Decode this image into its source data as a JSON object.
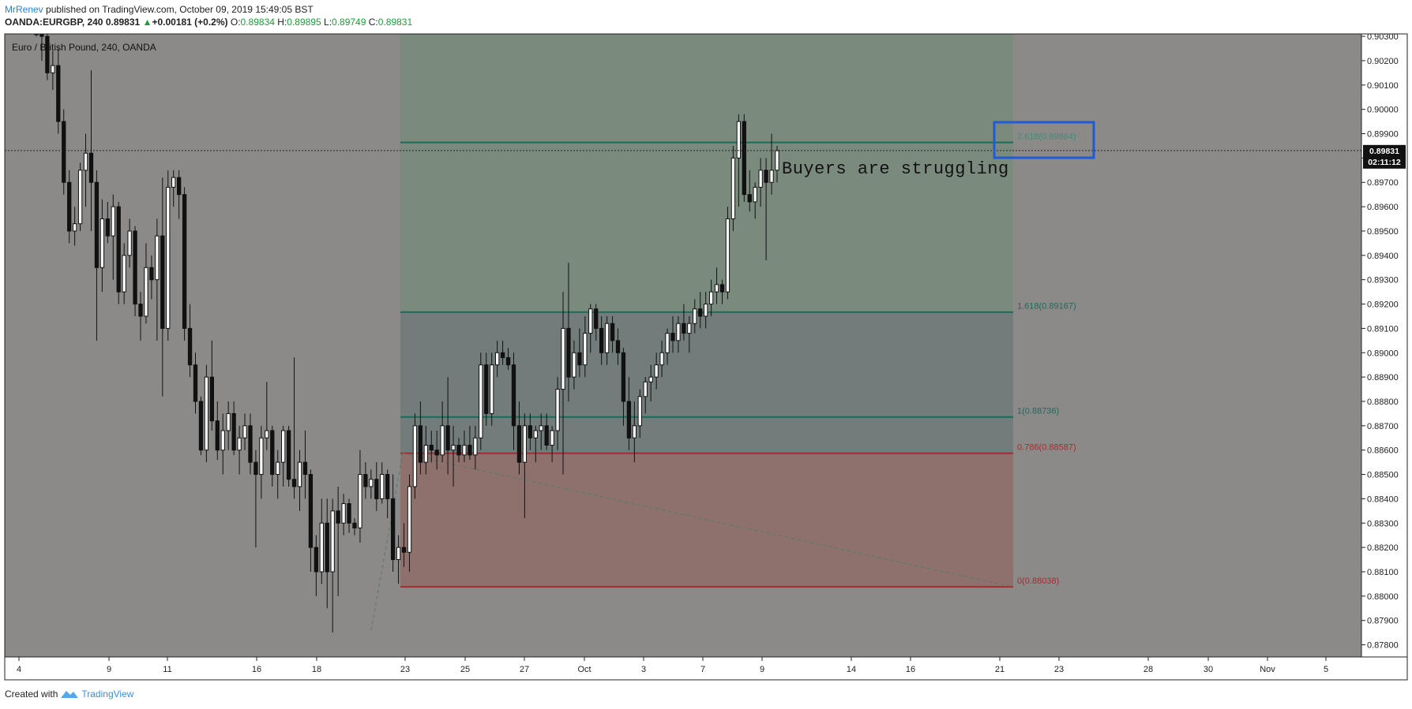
{
  "header": {
    "user": "MrRenev",
    "published": "published on TradingView.com, October 09, 2019 15:49:05 BST",
    "symbol": "OANDA:EURGBP, 240",
    "last": "0.89831",
    "change": "+0.00181 (+0.2%)",
    "o_label": "O:",
    "o": "0.89834",
    "h_label": "H:",
    "h": "0.89895",
    "l_label": "L:",
    "l": "0.89749",
    "c_label": "C:",
    "c": "0.89831"
  },
  "symbol_title": "Euro / British Pound, 240, OANDA",
  "annotation": "Buyers are struggling",
  "footer": {
    "created": "Created with",
    "brand": "TradingView"
  },
  "colors": {
    "panel_bg": "#8c8a88",
    "fib_green": "#7a8b7e",
    "fib_mid": "#727c7a",
    "fib_red": "#8e716c",
    "fib_line_green": "#1c6b5a",
    "fib_line_red": "#a42c32",
    "highlight_box": "#1f5bd8"
  },
  "chart_data": {
    "type": "candlestick",
    "ylim": [
      0.8775,
      0.9031
    ],
    "y_ticks": [
      "0.90300",
      "0.90200",
      "0.90100",
      "0.90000",
      "0.89900",
      "0.89800",
      "0.89700",
      "0.89600",
      "0.89500",
      "0.89400",
      "0.89300",
      "0.89200",
      "0.89100",
      "0.89000",
      "0.88900",
      "0.88800",
      "0.88700",
      "0.88600",
      "0.88500",
      "0.88400",
      "0.88300",
      "0.88200",
      "0.88100",
      "0.88000",
      "0.87900",
      "0.87800"
    ],
    "x_ticks": [
      "4",
      "9",
      "11",
      "16",
      "18",
      "23",
      "25",
      "27",
      "Oct",
      "3",
      "7",
      "9",
      "14",
      "16",
      "21",
      "23",
      "28",
      "30",
      "Nov",
      "5"
    ],
    "last_price": "0.89831",
    "countdown": "02:11:12",
    "fib_levels": [
      {
        "label": "2.618(0.89864)",
        "price": 0.89864
      },
      {
        "label": "1.618(0.89167)",
        "price": 0.89167
      },
      {
        "label": "1(0.88736)",
        "price": 0.88736
      },
      {
        "label": "0.786(0.88587)",
        "price": 0.88587
      },
      {
        "label": "0(0.88038)",
        "price": 0.88038
      }
    ],
    "candles": [
      [
        0.905,
        0.9058,
        0.903,
        0.904
      ],
      [
        0.904,
        0.905,
        0.902,
        0.903
      ],
      [
        0.903,
        0.9032,
        0.9012,
        0.9015
      ],
      [
        0.9015,
        0.9024,
        0.9008,
        0.9018
      ],
      [
        0.9018,
        0.9025,
        0.899,
        0.8995
      ],
      [
        0.8995,
        0.9,
        0.8965,
        0.897
      ],
      [
        0.897,
        0.8975,
        0.8945,
        0.895
      ],
      [
        0.895,
        0.896,
        0.8944,
        0.8953
      ],
      [
        0.8953,
        0.8978,
        0.895,
        0.8975
      ],
      [
        0.8975,
        0.899,
        0.896,
        0.8982
      ],
      [
        0.8982,
        0.9016,
        0.895,
        0.897
      ],
      [
        0.897,
        0.8975,
        0.8905,
        0.8935
      ],
      [
        0.8935,
        0.8963,
        0.8925,
        0.8955
      ],
      [
        0.8955,
        0.8962,
        0.8945,
        0.8948
      ],
      [
        0.8948,
        0.8965,
        0.893,
        0.896
      ],
      [
        0.896,
        0.8962,
        0.892,
        0.8925
      ],
      [
        0.8925,
        0.8945,
        0.892,
        0.894
      ],
      [
        0.894,
        0.8955,
        0.8935,
        0.895
      ],
      [
        0.895,
        0.8952,
        0.8915,
        0.892
      ],
      [
        0.892,
        0.8925,
        0.8905,
        0.8915
      ],
      [
        0.8915,
        0.8945,
        0.8912,
        0.8935
      ],
      [
        0.8935,
        0.894,
        0.8922,
        0.893
      ],
      [
        0.893,
        0.8955,
        0.8905,
        0.8948
      ],
      [
        0.8948,
        0.8972,
        0.8882,
        0.891
      ],
      [
        0.891,
        0.8975,
        0.8905,
        0.8968
      ],
      [
        0.8968,
        0.8975,
        0.896,
        0.8972
      ],
      [
        0.8972,
        0.8975,
        0.8955,
        0.8965
      ],
      [
        0.8965,
        0.8968,
        0.8905,
        0.891
      ],
      [
        0.891,
        0.892,
        0.889,
        0.8895
      ],
      [
        0.8895,
        0.89,
        0.8875,
        0.888
      ],
      [
        0.888,
        0.8882,
        0.8858,
        0.886
      ],
      [
        0.886,
        0.8895,
        0.8855,
        0.889
      ],
      [
        0.889,
        0.8905,
        0.8868,
        0.8872
      ],
      [
        0.8872,
        0.888,
        0.8856,
        0.886
      ],
      [
        0.886,
        0.8875,
        0.885,
        0.8868
      ],
      [
        0.8868,
        0.888,
        0.886,
        0.8875
      ],
      [
        0.8875,
        0.888,
        0.8858,
        0.886
      ],
      [
        0.886,
        0.887,
        0.885,
        0.8865
      ],
      [
        0.8865,
        0.8875,
        0.886,
        0.887
      ],
      [
        0.887,
        0.8875,
        0.885,
        0.8855
      ],
      [
        0.8855,
        0.886,
        0.882,
        0.885
      ],
      [
        0.885,
        0.887,
        0.884,
        0.8865
      ],
      [
        0.8865,
        0.8888,
        0.886,
        0.8868
      ],
      [
        0.8868,
        0.887,
        0.8845,
        0.885
      ],
      [
        0.885,
        0.886,
        0.884,
        0.8855
      ],
      [
        0.8855,
        0.887,
        0.8845,
        0.8868
      ],
      [
        0.8868,
        0.887,
        0.8845,
        0.8848
      ],
      [
        0.8848,
        0.8898,
        0.884,
        0.8845
      ],
      [
        0.8845,
        0.886,
        0.8835,
        0.8855
      ],
      [
        0.8855,
        0.8868,
        0.884,
        0.885
      ],
      [
        0.885,
        0.8852,
        0.881,
        0.882
      ],
      [
        0.882,
        0.8825,
        0.88,
        0.881
      ],
      [
        0.881,
        0.884,
        0.8805,
        0.883
      ],
      [
        0.883,
        0.884,
        0.8795,
        0.881
      ],
      [
        0.881,
        0.884,
        0.8785,
        0.8835
      ],
      [
        0.8835,
        0.8845,
        0.88,
        0.883
      ],
      [
        0.883,
        0.8842,
        0.8825,
        0.8838
      ],
      [
        0.8838,
        0.884,
        0.8826,
        0.883
      ],
      [
        0.883,
        0.8832,
        0.8825,
        0.8828
      ],
      [
        0.8828,
        0.886,
        0.8822,
        0.885
      ],
      [
        0.885,
        0.8855,
        0.884,
        0.8845
      ],
      [
        0.8845,
        0.8852,
        0.884,
        0.8848
      ],
      [
        0.8848,
        0.8855,
        0.8835,
        0.884
      ],
      [
        0.884,
        0.8855,
        0.8838,
        0.885
      ],
      [
        0.885,
        0.8852,
        0.8832,
        0.884
      ],
      [
        0.884,
        0.885,
        0.881,
        0.8815
      ],
      [
        0.8815,
        0.8825,
        0.8805,
        0.882
      ],
      [
        0.882,
        0.883,
        0.8812,
        0.8818
      ],
      [
        0.8818,
        0.885,
        0.881,
        0.8845
      ],
      [
        0.8845,
        0.8875,
        0.884,
        0.887
      ],
      [
        0.887,
        0.888,
        0.885,
        0.8855
      ],
      [
        0.8855,
        0.887,
        0.885,
        0.8862
      ],
      [
        0.8862,
        0.8868,
        0.8855,
        0.886
      ],
      [
        0.886,
        0.8868,
        0.8852,
        0.8858
      ],
      [
        0.8858,
        0.888,
        0.8855,
        0.887
      ],
      [
        0.887,
        0.889,
        0.885,
        0.886
      ],
      [
        0.886,
        0.887,
        0.8845,
        0.8862
      ],
      [
        0.8862,
        0.8865,
        0.8855,
        0.8858
      ],
      [
        0.8858,
        0.8868,
        0.8855,
        0.8862
      ],
      [
        0.8862,
        0.887,
        0.8856,
        0.8858
      ],
      [
        0.8858,
        0.887,
        0.8852,
        0.8865
      ],
      [
        0.8865,
        0.89,
        0.886,
        0.8895
      ],
      [
        0.8895,
        0.89,
        0.887,
        0.8875
      ],
      [
        0.8875,
        0.89,
        0.887,
        0.8895
      ],
      [
        0.8895,
        0.8905,
        0.889,
        0.89
      ],
      [
        0.89,
        0.8905,
        0.8895,
        0.8898
      ],
      [
        0.8898,
        0.8902,
        0.8893,
        0.8895
      ],
      [
        0.8895,
        0.89,
        0.886,
        0.887
      ],
      [
        0.887,
        0.888,
        0.885,
        0.8855
      ],
      [
        0.8855,
        0.8875,
        0.8832,
        0.887
      ],
      [
        0.887,
        0.8875,
        0.886,
        0.8865
      ],
      [
        0.8865,
        0.887,
        0.8855,
        0.8868
      ],
      [
        0.8868,
        0.8875,
        0.886,
        0.887
      ],
      [
        0.887,
        0.8875,
        0.886,
        0.8862
      ],
      [
        0.8862,
        0.887,
        0.8855,
        0.8868
      ],
      [
        0.8868,
        0.889,
        0.886,
        0.8885
      ],
      [
        0.8885,
        0.8925,
        0.885,
        0.891
      ],
      [
        0.891,
        0.8937,
        0.888,
        0.889
      ],
      [
        0.889,
        0.8905,
        0.8885,
        0.89
      ],
      [
        0.89,
        0.891,
        0.889,
        0.8895
      ],
      [
        0.8895,
        0.8915,
        0.889,
        0.8908
      ],
      [
        0.8908,
        0.892,
        0.89,
        0.8918
      ],
      [
        0.8918,
        0.892,
        0.8905,
        0.891
      ],
      [
        0.891,
        0.8915,
        0.8895,
        0.89
      ],
      [
        0.89,
        0.8915,
        0.8895,
        0.8912
      ],
      [
        0.8912,
        0.8915,
        0.89,
        0.8905
      ],
      [
        0.8905,
        0.891,
        0.8895,
        0.89
      ],
      [
        0.89,
        0.8902,
        0.887,
        0.888
      ],
      [
        0.888,
        0.889,
        0.886,
        0.8865
      ],
      [
        0.8865,
        0.888,
        0.8855,
        0.887
      ],
      [
        0.887,
        0.8885,
        0.8865,
        0.8882
      ],
      [
        0.8882,
        0.889,
        0.8875,
        0.8888
      ],
      [
        0.8888,
        0.8895,
        0.888,
        0.889
      ],
      [
        0.889,
        0.89,
        0.8885,
        0.8895
      ],
      [
        0.8895,
        0.8905,
        0.889,
        0.89
      ],
      [
        0.89,
        0.891,
        0.8895,
        0.8908
      ],
      [
        0.8908,
        0.8915,
        0.89,
        0.8905
      ],
      [
        0.8905,
        0.8915,
        0.89,
        0.8912
      ],
      [
        0.8912,
        0.892,
        0.8905,
        0.8908
      ],
      [
        0.8908,
        0.8915,
        0.89,
        0.8912
      ],
      [
        0.8912,
        0.8922,
        0.8908,
        0.8918
      ],
      [
        0.8918,
        0.8925,
        0.891,
        0.8915
      ],
      [
        0.8915,
        0.8925,
        0.891,
        0.892
      ],
      [
        0.892,
        0.893,
        0.8915,
        0.8925
      ],
      [
        0.8925,
        0.8935,
        0.892,
        0.8928
      ],
      [
        0.8928,
        0.893,
        0.892,
        0.8925
      ],
      [
        0.8925,
        0.896,
        0.8922,
        0.8955
      ],
      [
        0.8955,
        0.8985,
        0.895,
        0.898
      ],
      [
        0.898,
        0.8998,
        0.896,
        0.8995
      ],
      [
        0.8995,
        0.8998,
        0.8962,
        0.8965
      ],
      [
        0.8965,
        0.8975,
        0.8958,
        0.8962
      ],
      [
        0.8962,
        0.897,
        0.8955,
        0.8968
      ],
      [
        0.8968,
        0.898,
        0.896,
        0.8975
      ],
      [
        0.8975,
        0.898,
        0.8938,
        0.897
      ],
      [
        0.897,
        0.899,
        0.8965,
        0.8975
      ],
      [
        0.8975,
        0.8985,
        0.897,
        0.8983
      ]
    ]
  }
}
